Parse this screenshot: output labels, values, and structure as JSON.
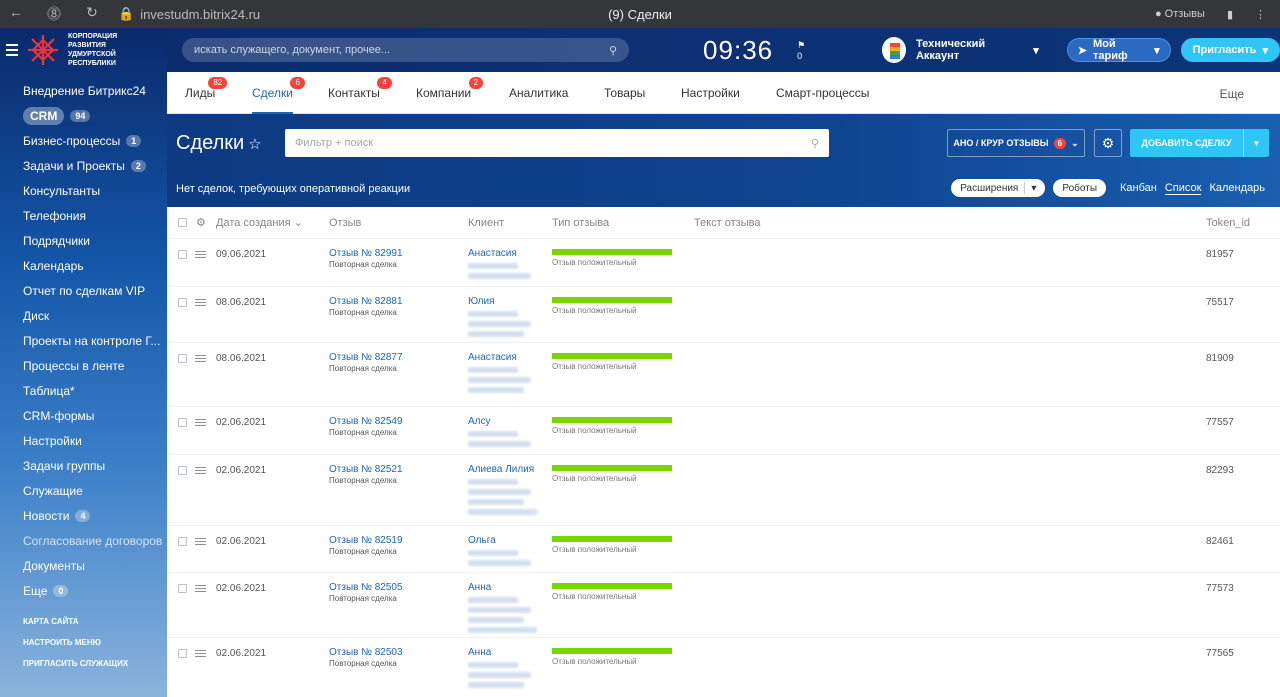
{
  "browser": {
    "url": "investudm.bitrix24.ru",
    "tab_title": "(9) Сделки",
    "feedback": "Отзывы"
  },
  "logo": {
    "text": "Корпорация развития Удмуртской Республики"
  },
  "sidebar": {
    "items": [
      {
        "label": "Внедрение Битрикс24",
        "count": ""
      },
      {
        "label": "CRM",
        "count": "94"
      },
      {
        "label": "Бизнес-процессы",
        "count": "1"
      },
      {
        "label": "Задачи и Проекты",
        "count": "2"
      },
      {
        "label": "Консультанты",
        "count": ""
      },
      {
        "label": "Телефония",
        "count": ""
      },
      {
        "label": "Подрядчики",
        "count": ""
      },
      {
        "label": "Календарь",
        "count": ""
      },
      {
        "label": "Отчет по сделкам VIP",
        "count": ""
      },
      {
        "label": "Диск",
        "count": ""
      },
      {
        "label": "Проекты на контроле Г...",
        "count": ""
      },
      {
        "label": "Процессы в ленте",
        "count": ""
      },
      {
        "label": "Таблица*",
        "count": ""
      },
      {
        "label": "CRM-формы",
        "count": ""
      },
      {
        "label": "Настройки",
        "count": ""
      },
      {
        "label": "Задачи группы",
        "count": ""
      },
      {
        "label": "Служащие",
        "count": ""
      },
      {
        "label": "Новости",
        "count": "4"
      },
      {
        "label": "Согласование договоров",
        "count": ""
      },
      {
        "label": "Документы",
        "count": ""
      },
      {
        "label": "Еще",
        "count": "0"
      }
    ],
    "footer": [
      "Карта сайта",
      "Настроить меню",
      "Пригласить служащих"
    ]
  },
  "header": {
    "search_placeholder": "искать служащего, документ, прочее...",
    "clock": "09:36",
    "flag_count": "0",
    "account": "Технический Аккаунт",
    "tariff": "Мой тариф",
    "invite": "Пригласить"
  },
  "tabs": [
    {
      "label": "Лиды",
      "badge": "82"
    },
    {
      "label": "Сделки",
      "badge": "6"
    },
    {
      "label": "Контакты",
      "badge": "4"
    },
    {
      "label": "Компании",
      "badge": "2"
    },
    {
      "label": "Аналитика",
      "badge": ""
    },
    {
      "label": "Товары",
      "badge": ""
    },
    {
      "label": "Настройки",
      "badge": ""
    },
    {
      "label": "Смарт-процессы",
      "badge": ""
    }
  ],
  "tabs_more": "Еще",
  "crm": {
    "title": "Сделки",
    "filter_placeholder": "Фильтр + поиск",
    "pipeline": "АНО / КРУР ОТЗЫВЫ",
    "pipeline_badge": "6",
    "add": "ДОБАВИТЬ СДЕЛКУ",
    "note": "Нет сделок, требующих оперативной реакции",
    "extensions": "Расширения",
    "robots": "Роботы",
    "views": [
      "Канбан",
      "Список",
      "Календарь"
    ]
  },
  "grid": {
    "columns": [
      "Дата создания",
      "Отзыв",
      "Клиент",
      "Тип отзыва",
      "Текст отзыва",
      "Token_id"
    ],
    "rows": [
      {
        "date": "09.06.2021",
        "deal": "Отзыв № 82991",
        "sub": "Повторная сделка",
        "client": "Анастасия",
        "type": "Отзыв положительный",
        "token": "81957"
      },
      {
        "date": "08.06.2021",
        "deal": "Отзыв № 82881",
        "sub": "Повторная сделка",
        "client": "Юлия",
        "type": "Отзыв положительный",
        "token": "75517"
      },
      {
        "date": "08.06.2021",
        "deal": "Отзыв № 82877",
        "sub": "Повторная сделка",
        "client": "Анастасия",
        "type": "Отзыв положительный",
        "token": "81909"
      },
      {
        "date": "02.06.2021",
        "deal": "Отзыв № 82549",
        "sub": "Повторная сделка",
        "client": "Алсу",
        "type": "Отзыв положительный",
        "token": "77557"
      },
      {
        "date": "02.06.2021",
        "deal": "Отзыв № 82521",
        "sub": "Повторная сделка",
        "client": "Алиева Лилия",
        "type": "Отзыв положительный",
        "token": "82293"
      },
      {
        "date": "02.06.2021",
        "deal": "Отзыв № 82519",
        "sub": "Повторная сделка",
        "client": "Ольга",
        "type": "Отзыв положительный",
        "token": "82461"
      },
      {
        "date": "02.06.2021",
        "deal": "Отзыв № 82505",
        "sub": "Повторная сделка",
        "client": "Анна",
        "type": "Отзыв положительный",
        "token": "77573"
      },
      {
        "date": "02.06.2021",
        "deal": "Отзыв № 82503",
        "sub": "Повторная сделка",
        "client": "Анна",
        "type": "Отзыв положительный",
        "token": "77565"
      }
    ]
  }
}
